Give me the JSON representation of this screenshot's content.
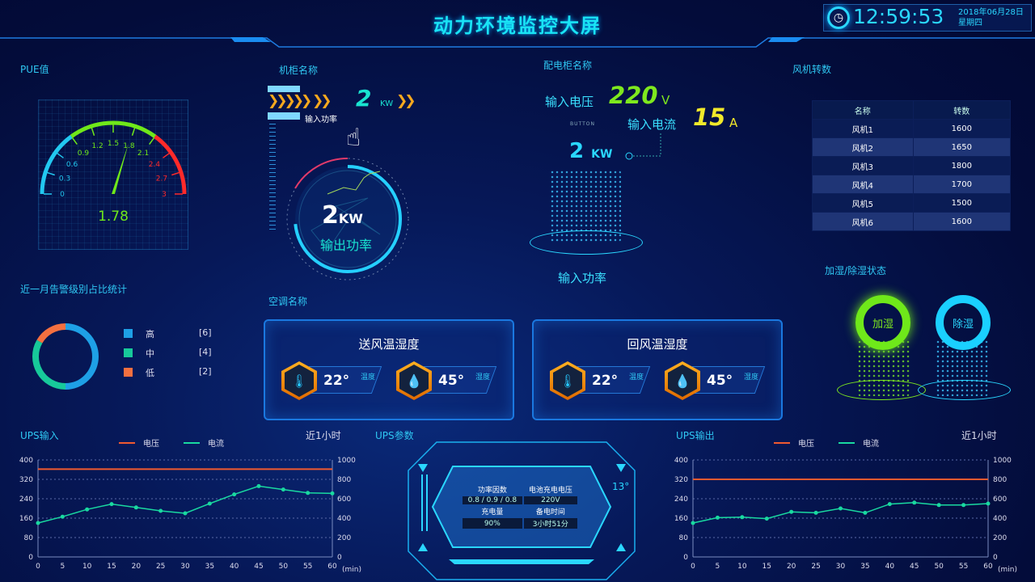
{
  "header": {
    "title": "动力环境监控大屏",
    "time": "12:59:53",
    "date": "2018年06月28日",
    "weekday": "星期四"
  },
  "pue": {
    "title": "PUE值",
    "value": 1.78,
    "value_label": "1.78",
    "min": 0,
    "max": 3,
    "ticks": [
      "0",
      "0.3",
      "0.6",
      "0.9",
      "1.2",
      "1.5",
      "1.8",
      "2.1",
      "2.4",
      "2.7",
      "3"
    ],
    "colors": {
      "low": "#22c8f0",
      "mid": "#6fe81a",
      "high": "#ff2a2a"
    }
  },
  "alarm": {
    "title": "近一月告警级别占比统计",
    "items": [
      {
        "label": "高",
        "count": "[6]",
        "value": 6,
        "color": "#1ea0e6"
      },
      {
        "label": "中",
        "count": "[4]",
        "value": 4,
        "color": "#17c99a"
      },
      {
        "label": "低",
        "count": "[2]",
        "value": 2,
        "color": "#f47040"
      }
    ]
  },
  "cabinet": {
    "title": "机柜名称",
    "input_value": "2",
    "input_unit": "KW",
    "input_label": "输入功率",
    "output_value": "2",
    "output_unit": "KW",
    "output_label": "输出功率",
    "scale_ticks": [
      "160",
      "320",
      "80",
      "40",
      "20",
      "kW",
      "15",
      "30",
      "60"
    ]
  },
  "distribution": {
    "title": "配电柜名称",
    "voltage_label": "输入电压",
    "voltage": "220",
    "voltage_unit": "V",
    "current_label": "输入电流",
    "current": "15",
    "current_unit": "A",
    "power": "2",
    "power_unit": "KW",
    "power_label": "输入功率",
    "button_label": "BUTTON"
  },
  "fans": {
    "title": "风机转数",
    "headers": [
      "名称",
      "转数"
    ],
    "rows": [
      [
        "风机1",
        "1600"
      ],
      [
        "风机2",
        "1650"
      ],
      [
        "风机3",
        "1800"
      ],
      [
        "风机4",
        "1700"
      ],
      [
        "风机5",
        "1500"
      ],
      [
        "风机6",
        "1600"
      ]
    ]
  },
  "humidity": {
    "title": "加湿/除湿状态",
    "humidify": "加湿",
    "dehumidify": "除湿"
  },
  "ac": {
    "title": "空调名称",
    "panels": [
      {
        "title": "送风温湿度",
        "temp": "22°",
        "temp_label": "温度",
        "hum": "45°",
        "hum_label": "湿度"
      },
      {
        "title": "回风温湿度",
        "temp": "22°",
        "temp_label": "温度",
        "hum": "45°",
        "hum_label": "湿度"
      }
    ]
  },
  "ups": {
    "title": "UPS参数",
    "pf_label": "功率因数",
    "pf": "0.8 / 0.9 / 0.8",
    "bv_label": "电池充电电压",
    "bv": "220V",
    "charge_label": "充电量",
    "charge": "90%",
    "backup_label": "备电时间",
    "backup": "3小时51分",
    "temp": "13°"
  },
  "chart_data": [
    {
      "type": "line",
      "title": "UPS输入",
      "period": "近1小时",
      "x": [
        0,
        5,
        10,
        15,
        20,
        25,
        30,
        35,
        40,
        45,
        50,
        55,
        60
      ],
      "xunit": "(min)",
      "ylim_left": [
        0,
        400
      ],
      "yticks_left": [
        0,
        80,
        160,
        240,
        320,
        400
      ],
      "ylim_right": [
        0,
        1000
      ],
      "yticks_right": [
        0,
        200,
        400,
        600,
        800,
        1000
      ],
      "grid": true,
      "legend": "top",
      "series": [
        {
          "name": "电压",
          "axis": "left",
          "color": "#f05a30",
          "values": [
            362,
            362,
            362,
            362,
            362,
            362,
            362,
            362,
            362,
            362,
            362,
            362,
            362
          ]
        },
        {
          "name": "电流",
          "axis": "right",
          "color": "#19d9a0",
          "values": [
            350,
            415,
            490,
            545,
            510,
            475,
            450,
            550,
            645,
            730,
            695,
            660,
            655
          ]
        }
      ]
    },
    {
      "type": "line",
      "title": "UPS输出",
      "period": "近1小时",
      "x": [
        0,
        5,
        10,
        15,
        20,
        25,
        30,
        35,
        40,
        45,
        50,
        55,
        60
      ],
      "xunit": "(min)",
      "ylim_left": [
        0,
        400
      ],
      "yticks_left": [
        0,
        80,
        160,
        240,
        320,
        400
      ],
      "ylim_right": [
        0,
        1000
      ],
      "yticks_right": [
        0,
        200,
        400,
        600,
        800,
        1000
      ],
      "grid": true,
      "legend": "top",
      "series": [
        {
          "name": "电压",
          "axis": "left",
          "color": "#f05a30",
          "values": [
            320,
            320,
            320,
            320,
            320,
            320,
            320,
            320,
            320,
            320,
            320,
            320,
            320
          ]
        },
        {
          "name": "电流",
          "axis": "right",
          "color": "#19d9a0",
          "values": [
            350,
            405,
            410,
            395,
            465,
            455,
            500,
            455,
            545,
            560,
            535,
            535,
            550
          ]
        }
      ]
    }
  ]
}
